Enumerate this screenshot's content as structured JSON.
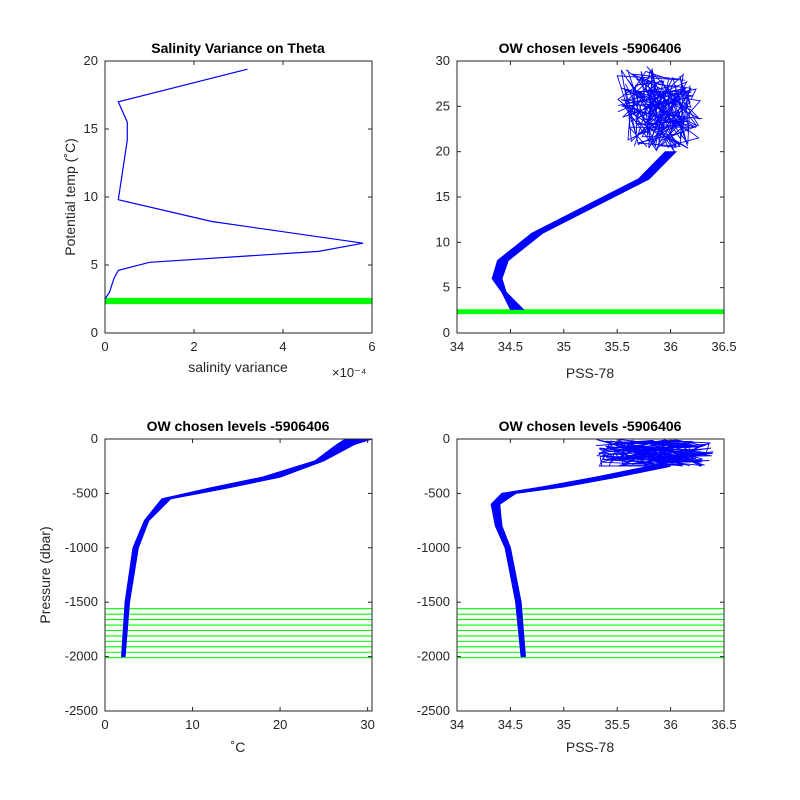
{
  "colors": {
    "profile": "#0000ff",
    "levels": "#00ff00",
    "axes": "#262626",
    "background": "#ffffff"
  },
  "chart_data": [
    {
      "id": "p1",
      "type": "line",
      "title": "Salinity Variance on Theta",
      "xlabel": "salinity variance",
      "ylabel": "Potential temp (˚C)",
      "x_exponent_label": "×10⁻⁴",
      "xlim": [
        0,
        6
      ],
      "ylim": [
        0,
        20
      ],
      "xticks": [
        0,
        2,
        4,
        6
      ],
      "yticks": [
        0,
        5,
        10,
        15,
        20
      ],
      "series": [
        {
          "x": [
            0.0,
            0.1,
            0.2,
            0.3,
            1.0,
            4.8,
            5.8,
            2.4,
            0.3,
            0.4,
            0.5,
            0.5,
            0.3,
            3.2
          ],
          "y": [
            2.5,
            3.0,
            4.0,
            4.6,
            5.2,
            6.0,
            6.6,
            8.2,
            9.8,
            12.0,
            14.2,
            15.5,
            17.0,
            19.4
          ]
        }
      ],
      "hlines": {
        "y": [
          2.2,
          2.3,
          2.4,
          2.5
        ]
      }
    },
    {
      "id": "p2",
      "type": "line",
      "title": "OW chosen levels -5906406",
      "xlabel": "PSS-78",
      "ylabel": "",
      "xlim": [
        34,
        36.5
      ],
      "ylim": [
        0,
        30
      ],
      "xticks": [
        34,
        34.5,
        35,
        35.5,
        36,
        36.5
      ],
      "yticks": [
        0,
        5,
        10,
        15,
        20,
        25,
        30
      ],
      "envelope": {
        "left": {
          "x": [
            34.5,
            34.42,
            34.33,
            34.38,
            34.7,
            35.2,
            35.7,
            35.95
          ],
          "y": [
            2.6,
            4.5,
            6,
            8,
            11,
            14,
            17,
            20
          ]
        },
        "right": {
          "x": [
            34.62,
            34.46,
            34.42,
            34.48,
            34.8,
            35.3,
            35.8,
            36.05
          ],
          "y": [
            2.6,
            4.5,
            6,
            8,
            11,
            14,
            17,
            20
          ]
        }
      },
      "tangle": {
        "x_range": [
          35.5,
          36.3
        ],
        "y_range": [
          20,
          29.5
        ]
      },
      "hlines": {
        "y": [
          2.2,
          2.3,
          2.4,
          2.5
        ]
      }
    },
    {
      "id": "p3",
      "type": "line",
      "title": "OW chosen levels -5906406",
      "xlabel": "˚C",
      "ylabel": "Pressure (dbar)",
      "xlim": [
        0,
        30.5
      ],
      "ylim": [
        -2500,
        0
      ],
      "xticks": [
        0,
        10,
        20,
        30
      ],
      "yticks": [
        0,
        -500,
        -1000,
        -1500,
        -2000,
        -2500
      ],
      "envelope": {
        "left": {
          "x": [
            1.9,
            2.3,
            3.2,
            4.5,
            6.5,
            12,
            18,
            24,
            26.5,
            27.5
          ],
          "y": [
            -2000,
            -1500,
            -1000,
            -750,
            -550,
            -450,
            -350,
            -200,
            -50,
            0
          ]
        },
        "right": {
          "x": [
            2.3,
            2.8,
            3.8,
            5.0,
            7.5,
            14,
            20,
            25,
            28.5,
            30.5
          ],
          "y": [
            -2000,
            -1500,
            -1000,
            -750,
            -550,
            -450,
            -350,
            -200,
            -50,
            0
          ]
        }
      },
      "hlines": {
        "y": [
          -1560,
          -1610,
          -1660,
          -1710,
          -1760,
          -1810,
          -1860,
          -1910,
          -1960,
          -2010
        ]
      }
    },
    {
      "id": "p4",
      "type": "line",
      "title": "OW chosen levels -5906406",
      "xlabel": "PSS-78",
      "ylabel": "",
      "xlim": [
        34,
        36.5
      ],
      "ylim": [
        -2500,
        0
      ],
      "xticks": [
        34,
        34.5,
        35,
        35.5,
        36,
        36.5
      ],
      "yticks": [
        0,
        -500,
        -1000,
        -1500,
        -2000,
        -2500
      ],
      "envelope": {
        "left": {
          "x": [
            34.6,
            34.55,
            34.45,
            34.36,
            34.32,
            34.42,
            34.8,
            35.3,
            35.8
          ],
          "y": [
            -2000,
            -1500,
            -1000,
            -800,
            -600,
            -500,
            -440,
            -350,
            -250
          ]
        },
        "right": {
          "x": [
            34.64,
            34.6,
            34.5,
            34.42,
            34.4,
            34.55,
            35.0,
            35.5,
            36.0
          ],
          "y": [
            -2000,
            -1500,
            -1000,
            -800,
            -600,
            -500,
            -440,
            -350,
            -250
          ]
        }
      },
      "tangle": {
        "x_range": [
          35.3,
          36.4
        ],
        "y_range": [
          -250,
          0
        ]
      },
      "hlines": {
        "y": [
          -1560,
          -1610,
          -1660,
          -1710,
          -1760,
          -1810,
          -1860,
          -1910,
          -1960,
          -2010
        ]
      }
    }
  ]
}
